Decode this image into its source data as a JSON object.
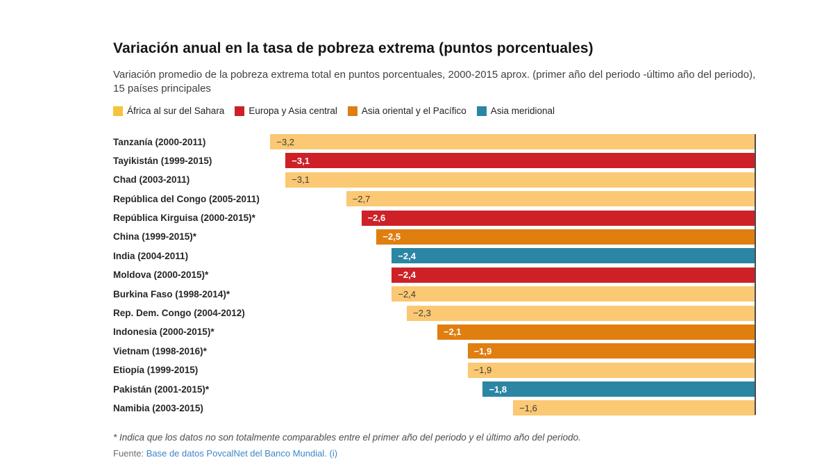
{
  "header": {
    "title": "Variación anual en la tasa de pobreza extrema (puntos porcentuales)",
    "subtitle": "Variación promedio de la pobreza extrema total en puntos porcentuales, 2000-2015 aprox. (primer año del periodo -último año del periodo), 15 países principales"
  },
  "legend": {
    "items": [
      {
        "label": "África al sur del Sahara",
        "color": "#F5C33C"
      },
      {
        "label": "Europa y Asia central",
        "color": "#CB2127"
      },
      {
        "label": "Asia oriental y el Pacífico",
        "color": "#DE7D12"
      },
      {
        "label": "Asia meridional",
        "color": "#2B86A4"
      }
    ]
  },
  "chart_data": {
    "type": "bar",
    "orientation": "horizontal",
    "title": "Variación anual en la tasa de pobreza extrema (puntos porcentuales)",
    "subtitle": "Variación promedio de la pobreza extrema total en puntos porcentuales, 2000-2015 aprox. (primer año del periodo -último año del periodo), 15 países principales",
    "unit": "puntos porcentuales",
    "xlim": [
      -3.22,
      0
    ],
    "legend_position": "top",
    "bars_aligned": "right edge at zero axis",
    "rows": [
      {
        "label": "Tanzanía (2000-2011)",
        "region": "África al sur del Sahara",
        "value": -3.2,
        "value_label": "−3,2"
      },
      {
        "label": "Tayikistán (1999-2015)",
        "region": "Europa y Asia central",
        "value": -3.1,
        "value_label": "−3,1"
      },
      {
        "label": "Chad (2003-2011)",
        "region": "África al sur del Sahara",
        "value": -3.1,
        "value_label": "−3,1"
      },
      {
        "label": "República del Congo (2005-2011)",
        "region": "África al sur del Sahara",
        "value": -2.7,
        "value_label": "−2,7"
      },
      {
        "label": "República Kirguisa (2000-2015)*",
        "region": "Europa y Asia central",
        "value": -2.6,
        "value_label": "−2,6"
      },
      {
        "label": "China (1999-2015)*",
        "region": "Asia oriental y el Pacífico",
        "value": -2.5,
        "value_label": "−2,5"
      },
      {
        "label": "India (2004-2011)",
        "region": "Asia meridional",
        "value": -2.4,
        "value_label": "−2,4"
      },
      {
        "label": "Moldova (2000-2015)*",
        "region": "Europa y Asia central",
        "value": -2.4,
        "value_label": "−2,4"
      },
      {
        "label": "Burkina Faso (1998-2014)*",
        "region": "África al sur del Sahara",
        "value": -2.4,
        "value_label": "−2,4"
      },
      {
        "label": "Rep. Dem. Congo (2004-2012)",
        "region": "África al sur del Sahara",
        "value": -2.3,
        "value_label": "−2,3"
      },
      {
        "label": "Indonesia (2000-2015)*",
        "region": "Asia oriental y el Pacífico",
        "value": -2.1,
        "value_label": "−2,1"
      },
      {
        "label": "Vietnam (1998-2016)*",
        "region": "Asia oriental y el Pacífico",
        "value": -1.9,
        "value_label": "−1,9"
      },
      {
        "label": "Etiopía (1999-2015)",
        "region": "África al sur del Sahara",
        "value": -1.9,
        "value_label": "−1,9"
      },
      {
        "label": "Pakistán (2001-2015)*",
        "region": "Asia meridional",
        "value": -1.8,
        "value_label": "−1,8"
      },
      {
        "label": "Namibia (2003-2015)",
        "region": "África al sur del Sahara",
        "value": -1.6,
        "value_label": "−1,6"
      }
    ],
    "region_colors": {
      "África al sur del Sahara": {
        "bar": "#FBC873",
        "text": "#3d3d3d",
        "text_weight": "400"
      },
      "Europa y Asia central": {
        "bar": "#CD2127",
        "text": "#ffffff",
        "text_weight": "700"
      },
      "Asia oriental y el Pacífico": {
        "bar": "#E07E10",
        "text": "#ffffff",
        "text_weight": "700"
      },
      "Asia meridional": {
        "bar": "#2B86A4",
        "text": "#ffffff",
        "text_weight": "700"
      }
    },
    "axis_line_color": "#4a4a4a"
  },
  "footer": {
    "footnote": "* Indica que los datos no son totalmente comparables entre el primer año del periodo y el último año del periodo.",
    "source_prefix": "Fuente: ",
    "source_link": "Base de datos PovcalNet del Banco Mundial. (i)",
    "link_color": "#3a87c8"
  }
}
